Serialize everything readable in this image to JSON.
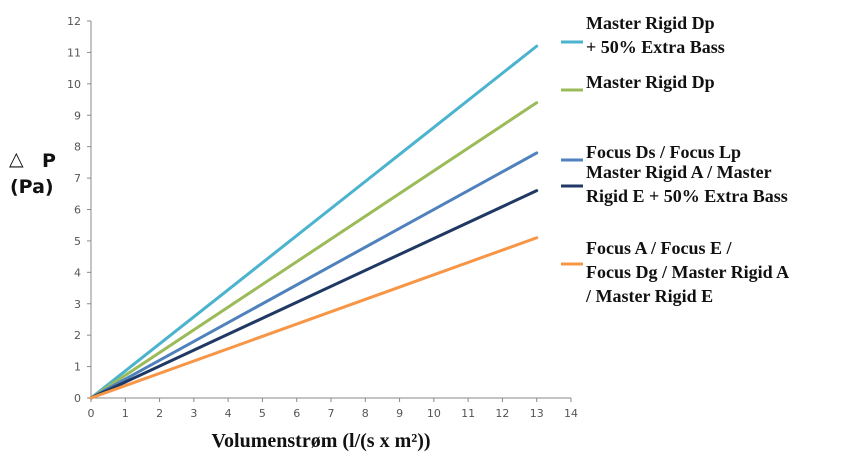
{
  "chart_data": {
    "type": "line",
    "ylabel_symbol": "△",
    "ylabel_line1": "P",
    "ylabel_unit": "(Pa)",
    "xlabel": "Volumenstrøm (l/(s x m²))",
    "xlim": [
      0,
      14
    ],
    "ylim": [
      0,
      12
    ],
    "x_ticks": [
      0,
      1,
      2,
      3,
      4,
      5,
      6,
      7,
      8,
      9,
      10,
      11,
      12,
      13,
      14
    ],
    "y_ticks": [
      0,
      1,
      2,
      3,
      4,
      5,
      6,
      7,
      8,
      9,
      10,
      11,
      12
    ],
    "grid": false,
    "legend_position": "right",
    "series": [
      {
        "lines": [
          "Master Rigid Dp",
          "+ 50% Extra Bass"
        ],
        "color": "#4BB3CE",
        "x": [
          0,
          13
        ],
        "y": [
          0,
          11.2
        ]
      },
      {
        "lines": [
          "Master Rigid Dp"
        ],
        "color": "#9BBB59",
        "x": [
          0,
          13
        ],
        "y": [
          0,
          9.4
        ]
      },
      {
        "lines": [
          "Focus Ds / Focus Lp"
        ],
        "color": "#4F81BD",
        "x": [
          0,
          13
        ],
        "y": [
          0,
          7.8
        ]
      },
      {
        "lines": [
          "Master Rigid A / Master",
          "Rigid E + 50% Extra Bass"
        ],
        "color": "#1F3864",
        "x": [
          0,
          13
        ],
        "y": [
          0,
          6.6
        ]
      },
      {
        "lines": [
          "Focus A / Focus E /",
          "Focus Dg / Master Rigid A",
          "/ Master Rigid E"
        ],
        "color": "#F79646",
        "x": [
          0,
          13
        ],
        "y": [
          0,
          5.1
        ]
      }
    ]
  }
}
